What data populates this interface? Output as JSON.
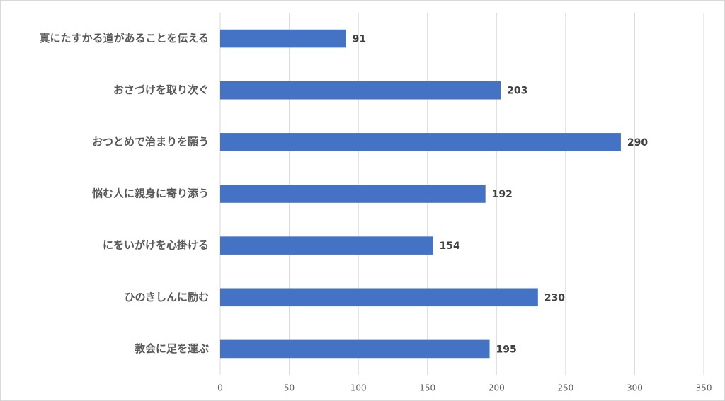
{
  "chart_data": {
    "type": "bar",
    "orientation": "horizontal",
    "categories": [
      "真にたすかる道があることを伝える",
      "おさづけを取り次ぐ",
      "おつとめで治まりを願う",
      "悩む人に親身に寄り添う",
      "にをいがけを心掛ける",
      "ひのきしんに励む",
      "教会に足を運ぶ"
    ],
    "values": [
      91,
      203,
      290,
      192,
      154,
      230,
      195
    ],
    "color": "#4472c4",
    "xlim": [
      0,
      350
    ],
    "xticks": [
      0,
      50,
      100,
      150,
      200,
      250,
      300,
      350
    ],
    "grid": true
  }
}
